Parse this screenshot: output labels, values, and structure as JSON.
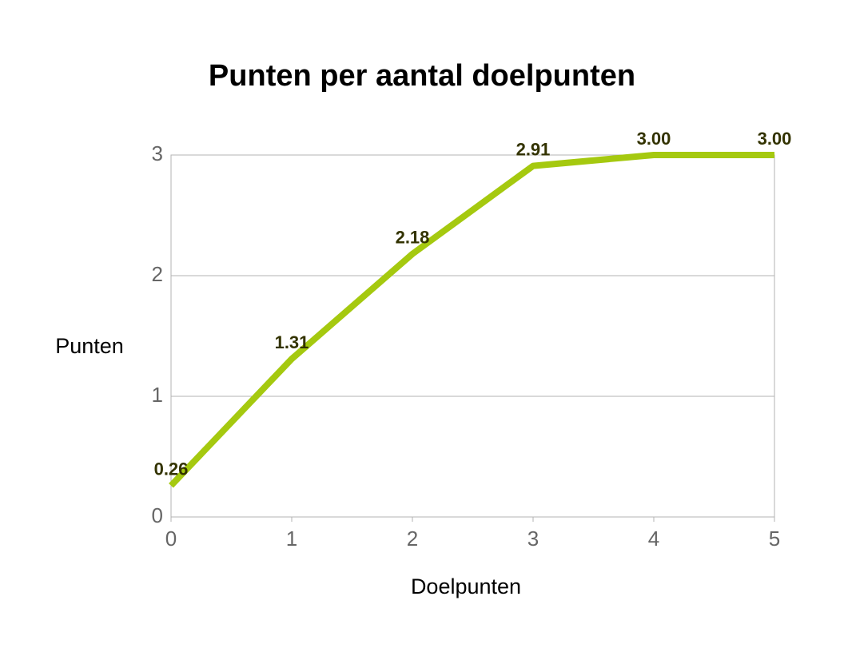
{
  "chart_data": {
    "type": "line",
    "title": "Punten per aantal doelpunten",
    "x_label": "Doelpunten",
    "y_label": "Punten",
    "x": [
      0,
      1,
      2,
      3,
      4,
      5
    ],
    "values": [
      0.26,
      1.31,
      2.18,
      2.91,
      3.0,
      3.0
    ],
    "value_labels": [
      "0.26",
      "1.31",
      "2.18",
      "2.91",
      "3.00",
      "3.00"
    ],
    "color": "#a5c90f",
    "xlim": [
      0,
      5
    ],
    "xticks": [
      0,
      1,
      2,
      3,
      4,
      5
    ],
    "ylim": [
      0,
      3
    ],
    "yticks": [
      0,
      1,
      2,
      3
    ],
    "grid": true
  }
}
